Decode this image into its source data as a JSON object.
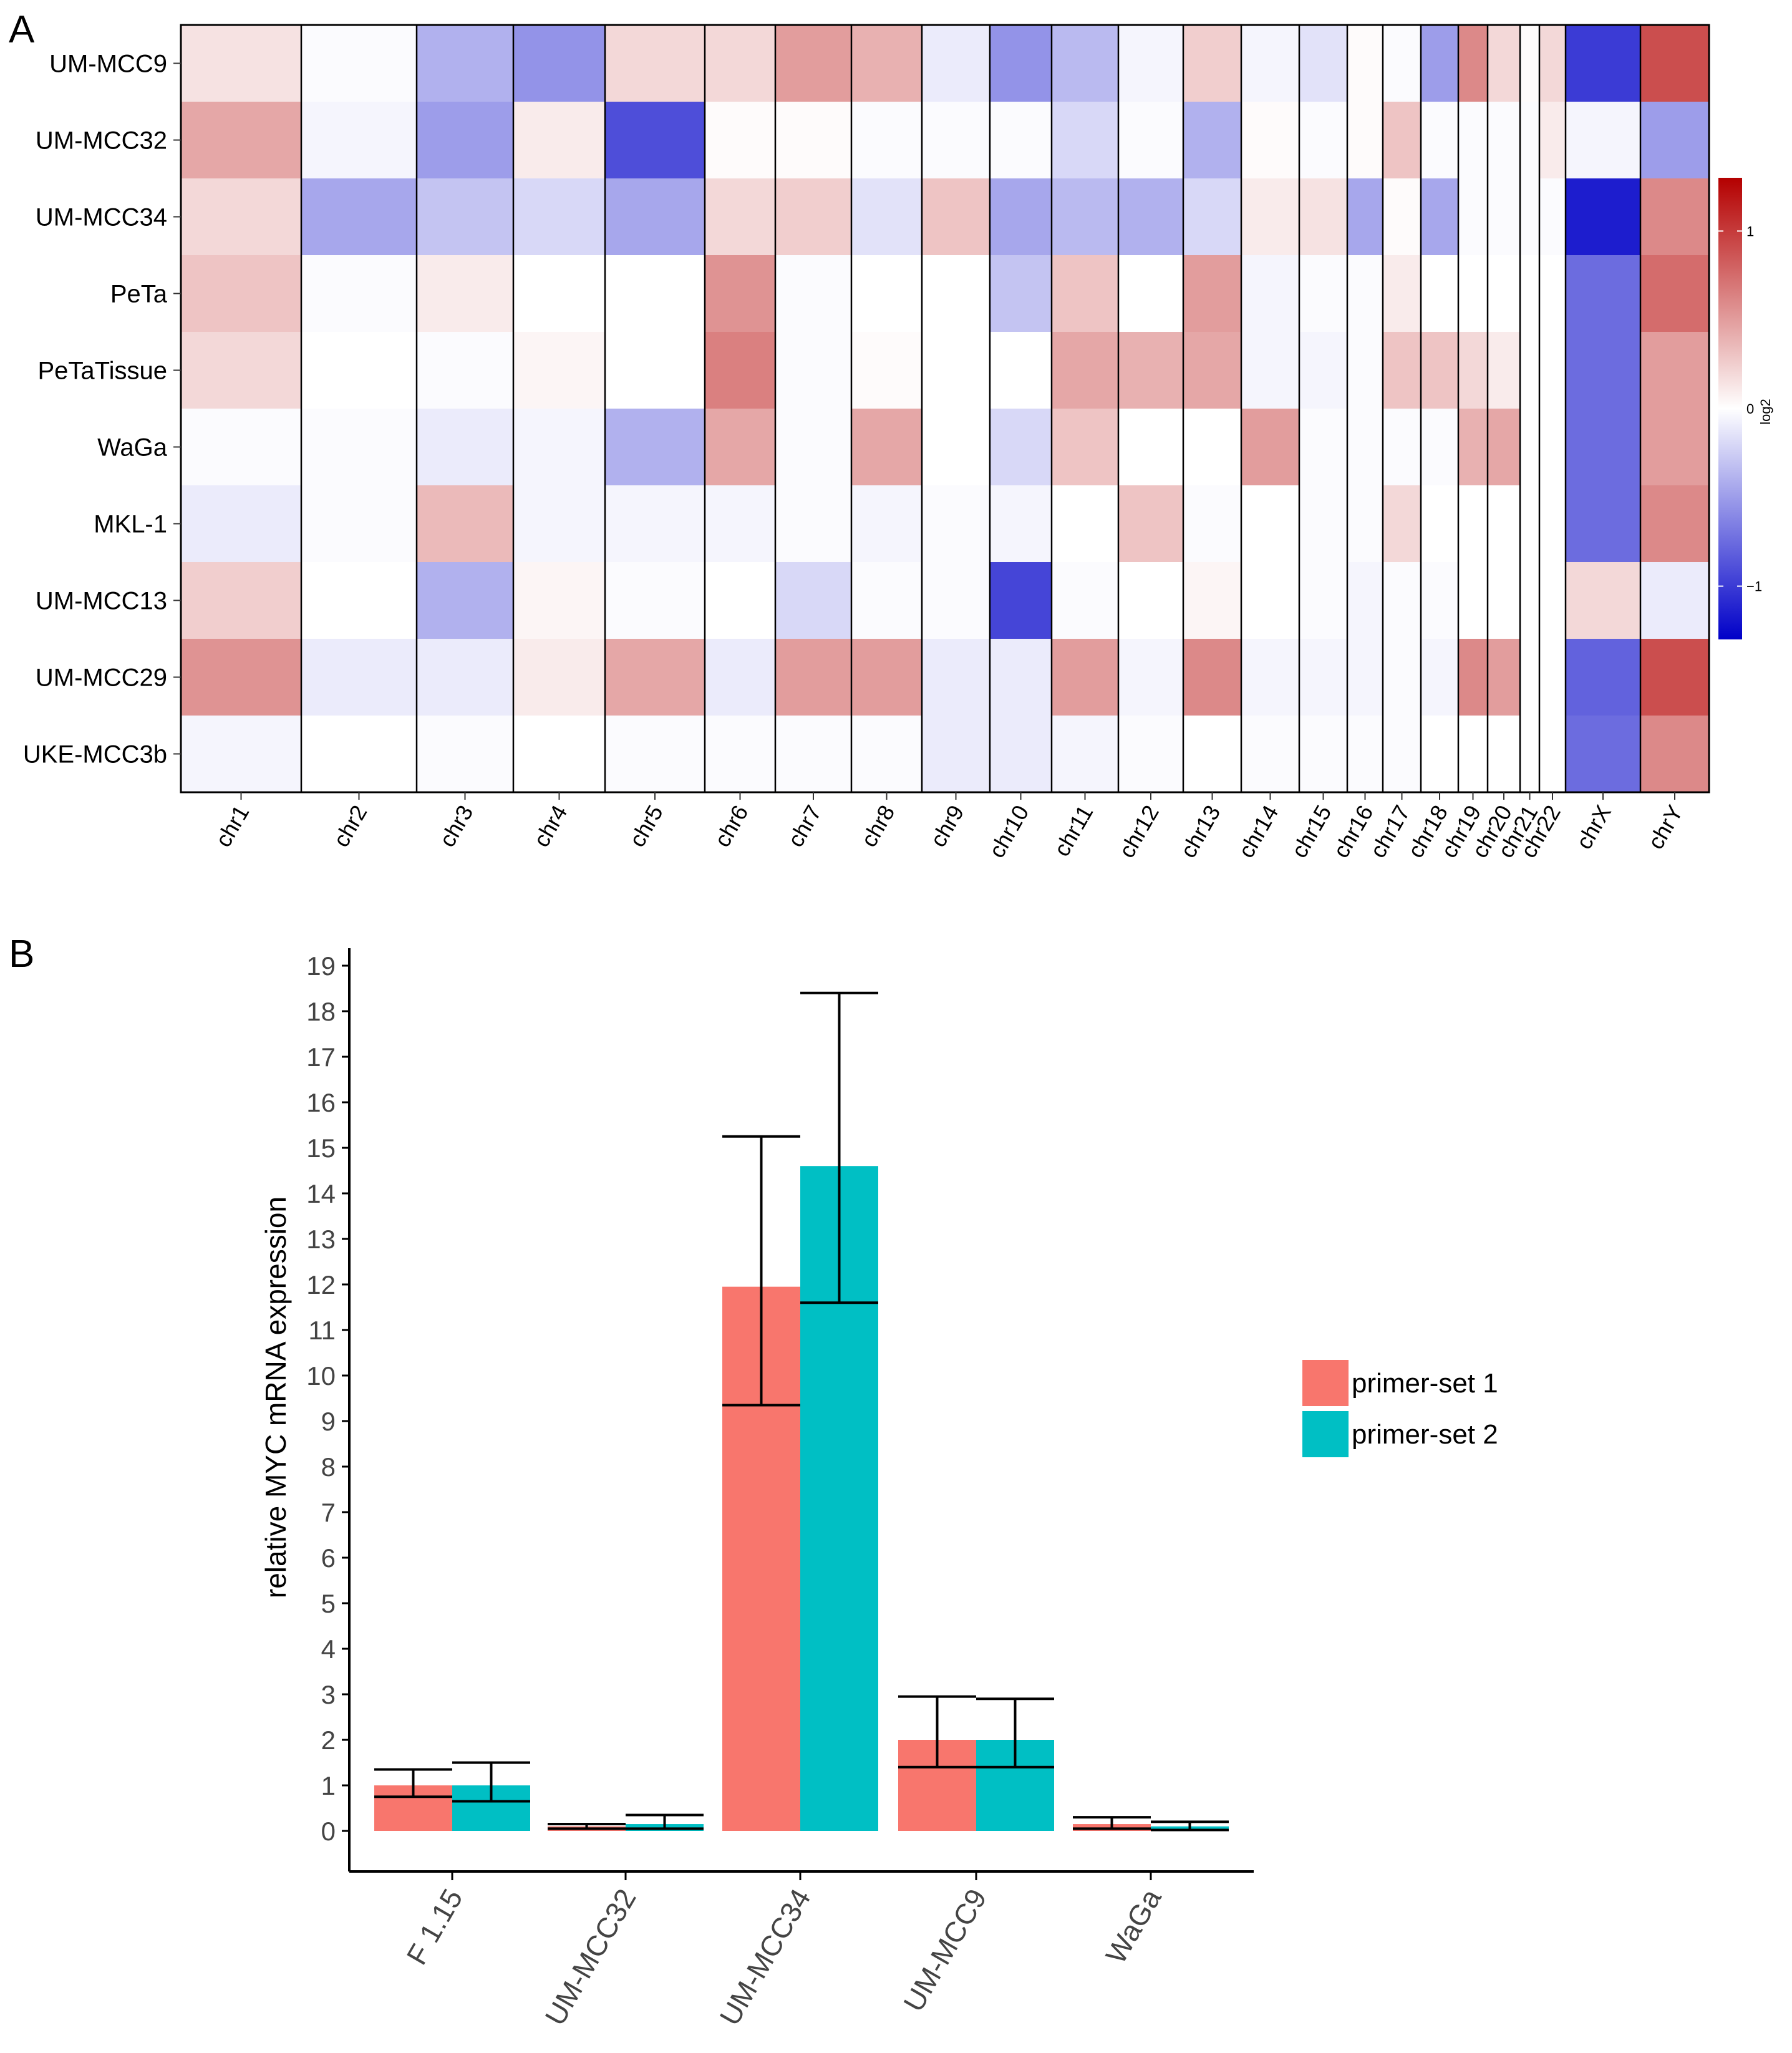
{
  "panel_a_label": "A",
  "panel_b_label": "B",
  "colors": {
    "high": "#b40000",
    "mid": "#ffffff",
    "low": "#0000c8",
    "primer_set_1": "#f8766d",
    "primer_set_2": "#00bfc4"
  },
  "chart_data": [
    {
      "type": "heatmap",
      "title": "",
      "value_label": "log2",
      "value_range": [
        -1.3,
        1.3
      ],
      "colorbar_ticks": [
        1,
        0,
        -1
      ],
      "colorbar_tick_labels": [
        "1",
        "0",
        "−1"
      ],
      "samples": [
        "UM-MCC9",
        "UM-MCC32",
        "UM-MCC34",
        "PeTa",
        "PeTaTissue",
        "WaGa",
        "MKL-1",
        "UM-MCC13",
        "UM-MCC29",
        "UKE-MCC3b"
      ],
      "chromosomes": [
        "chr1",
        "chr2",
        "chr3",
        "chr4",
        "chr5",
        "chr6",
        "chr7",
        "chr8",
        "chr9",
        "chr10",
        "chr11",
        "chr12",
        "chr13",
        "chr14",
        "chr15",
        "chr16",
        "chr17",
        "chr18",
        "chr19",
        "chr20",
        "chr21",
        "chr22",
        "chrX",
        "chrY"
      ],
      "values": [
        [
          0.15,
          -0.02,
          -0.4,
          -0.55,
          0.2,
          0.2,
          0.5,
          0.4,
          -0.1,
          -0.55,
          -0.35,
          -0.05,
          0.25,
          -0.05,
          -0.15,
          0.02,
          -0.02,
          -0.5,
          0.6,
          0.2,
          0.02,
          0.2,
          -1.0,
          0.9
        ],
        [
          0.45,
          -0.05,
          -0.5,
          0.1,
          -0.9,
          0.02,
          0.02,
          -0.02,
          -0.02,
          -0.02,
          -0.2,
          -0.02,
          -0.4,
          0.02,
          -0.02,
          0.02,
          0.3,
          -0.02,
          -0.02,
          -0.02,
          -0.02,
          0.1,
          -0.05,
          -0.5
        ],
        [
          0.2,
          -0.45,
          -0.3,
          -0.2,
          -0.45,
          0.2,
          0.25,
          -0.15,
          0.3,
          -0.45,
          -0.35,
          -0.4,
          -0.2,
          0.1,
          0.15,
          -0.45,
          0.02,
          -0.45,
          -0.02,
          -0.02,
          -0.02,
          -0.02,
          -1.15,
          0.6
        ],
        [
          0.3,
          -0.02,
          0.1,
          0.0,
          0.0,
          0.55,
          -0.02,
          0.0,
          0.0,
          -0.3,
          0.3,
          0.0,
          0.5,
          -0.05,
          -0.02,
          -0.02,
          0.1,
          0.0,
          0.0,
          0.0,
          0.0,
          0.0,
          -0.75,
          0.75
        ],
        [
          0.2,
          0.0,
          -0.02,
          0.05,
          0.0,
          0.65,
          -0.02,
          0.02,
          0.0,
          0.0,
          0.45,
          0.4,
          0.45,
          -0.05,
          -0.05,
          -0.02,
          0.3,
          0.3,
          0.2,
          0.1,
          0.0,
          0.0,
          -0.75,
          0.5
        ],
        [
          -0.02,
          -0.02,
          -0.1,
          -0.05,
          -0.4,
          0.45,
          -0.02,
          0.45,
          0.0,
          -0.2,
          0.3,
          0.0,
          0.0,
          0.5,
          -0.02,
          -0.02,
          -0.02,
          -0.02,
          0.4,
          0.45,
          0.0,
          0.0,
          -0.75,
          0.5
        ],
        [
          -0.1,
          -0.02,
          0.35,
          -0.05,
          -0.05,
          -0.05,
          -0.02,
          -0.05,
          -0.02,
          -0.05,
          0.0,
          0.3,
          -0.02,
          0.0,
          -0.02,
          -0.02,
          0.2,
          0.0,
          0.0,
          0.0,
          0.0,
          0.0,
          -0.75,
          0.6
        ],
        [
          0.25,
          0.0,
          -0.4,
          0.05,
          -0.02,
          0.0,
          -0.2,
          -0.02,
          -0.02,
          -0.95,
          -0.02,
          0.0,
          0.05,
          0.0,
          -0.02,
          -0.05,
          -0.02,
          -0.02,
          0.0,
          0.0,
          0.0,
          0.0,
          0.2,
          -0.1
        ],
        [
          0.55,
          -0.1,
          -0.1,
          0.1,
          0.45,
          -0.1,
          0.5,
          0.5,
          -0.1,
          -0.1,
          0.5,
          -0.05,
          0.6,
          -0.05,
          -0.05,
          -0.05,
          -0.02,
          -0.05,
          0.6,
          0.5,
          0.0,
          0.0,
          -0.8,
          0.9
        ],
        [
          -0.05,
          0.0,
          -0.02,
          0.0,
          -0.02,
          -0.02,
          -0.02,
          -0.02,
          -0.1,
          -0.1,
          -0.05,
          -0.02,
          0.0,
          -0.02,
          -0.02,
          -0.02,
          -0.02,
          0.0,
          0.0,
          0.0,
          0.0,
          0.0,
          -0.75,
          0.6
        ]
      ]
    },
    {
      "type": "bar",
      "title": "",
      "xlabel": "",
      "ylabel": "relative MYC mRNA expression",
      "ylim": [
        0,
        19
      ],
      "yticks": [
        0,
        1,
        2,
        3,
        4,
        5,
        6,
        7,
        8,
        9,
        10,
        11,
        12,
        13,
        14,
        15,
        16,
        17,
        18,
        19
      ],
      "categories": [
        "F 1.15",
        "UM-MCC32",
        "UM-MCC34",
        "UM-MCC9",
        "WaGa"
      ],
      "legend_position": "right",
      "series": [
        {
          "name": "primer-set 1",
          "values": [
            1.0,
            0.1,
            11.95,
            2.0,
            0.15
          ],
          "error_low": [
            0.75,
            0.05,
            9.35,
            1.4,
            0.05
          ],
          "error_high": [
            1.35,
            0.15,
            15.25,
            2.95,
            0.3
          ]
        },
        {
          "name": "primer-set 2",
          "values": [
            1.0,
            0.15,
            14.6,
            2.0,
            0.1
          ],
          "error_low": [
            0.65,
            0.05,
            11.6,
            1.4,
            0.02
          ],
          "error_high": [
            1.5,
            0.35,
            18.4,
            2.9,
            0.2
          ]
        }
      ]
    }
  ]
}
